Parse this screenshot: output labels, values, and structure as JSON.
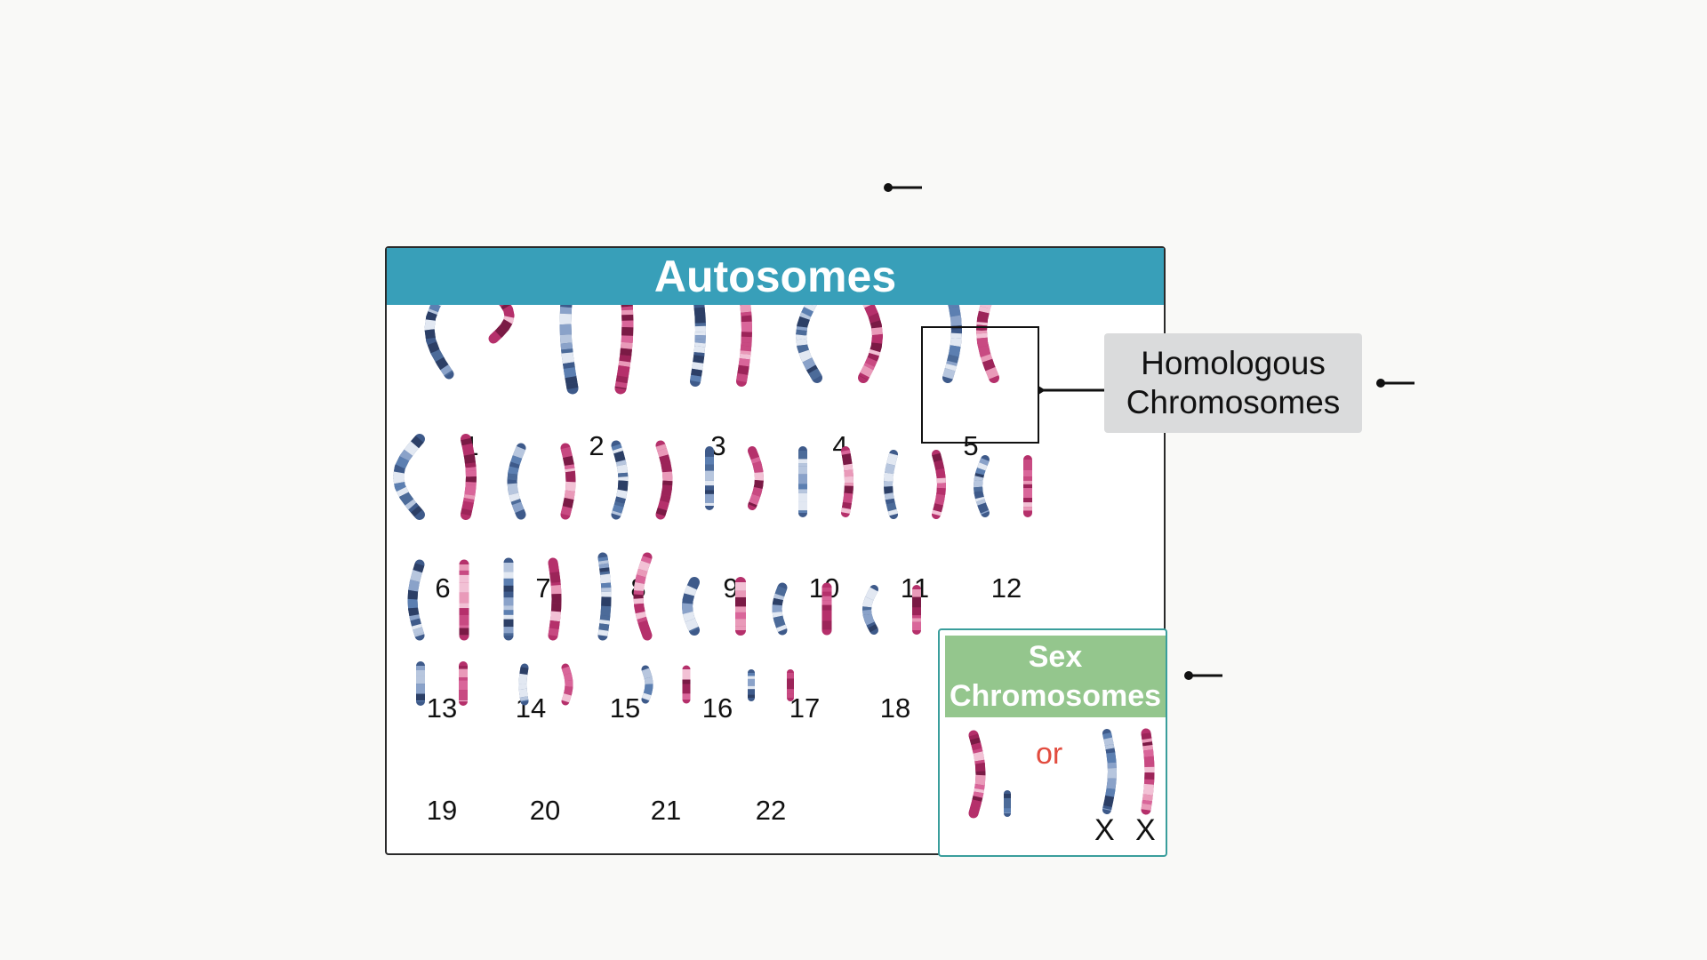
{
  "autosomes": {
    "title": "Autosomes",
    "pairs": [
      {
        "number": "1"
      },
      {
        "number": "2"
      },
      {
        "number": "3"
      },
      {
        "number": "4"
      },
      {
        "number": "5"
      },
      {
        "number": "6"
      },
      {
        "number": "7"
      },
      {
        "number": "8"
      },
      {
        "number": "9"
      },
      {
        "number": "10"
      },
      {
        "number": "11"
      },
      {
        "number": "12"
      },
      {
        "number": "13"
      },
      {
        "number": "14"
      },
      {
        "number": "15"
      },
      {
        "number": "16"
      },
      {
        "number": "17"
      },
      {
        "number": "18"
      },
      {
        "number": "19"
      },
      {
        "number": "20"
      },
      {
        "number": "21"
      },
      {
        "number": "22"
      }
    ]
  },
  "homologous_label": "Homologous Chromosomes",
  "sex_chromosomes": {
    "title": "Sex Chromosomes",
    "or_label": "or",
    "x_labels": [
      "X",
      "X"
    ]
  },
  "colors": {
    "header_teal": "#389fb9",
    "sex_header_green": "#94c68d",
    "maternal_blue": "#4c6b99",
    "paternal_magenta": "#b5306b",
    "callout_gray": "#dadbdc",
    "or_red": "#e24c3f"
  }
}
